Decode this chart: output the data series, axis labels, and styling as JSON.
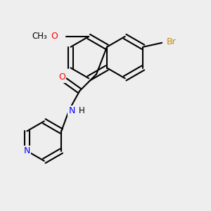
{
  "background_color": "#eeeeee",
  "bond_color": "#000000",
  "atom_colors": {
    "O": "#ff0000",
    "N": "#0000ff",
    "Br": "#cc8800",
    "C": "#000000",
    "H": "#000000"
  },
  "figsize": [
    3.0,
    3.0
  ],
  "dpi": 100
}
